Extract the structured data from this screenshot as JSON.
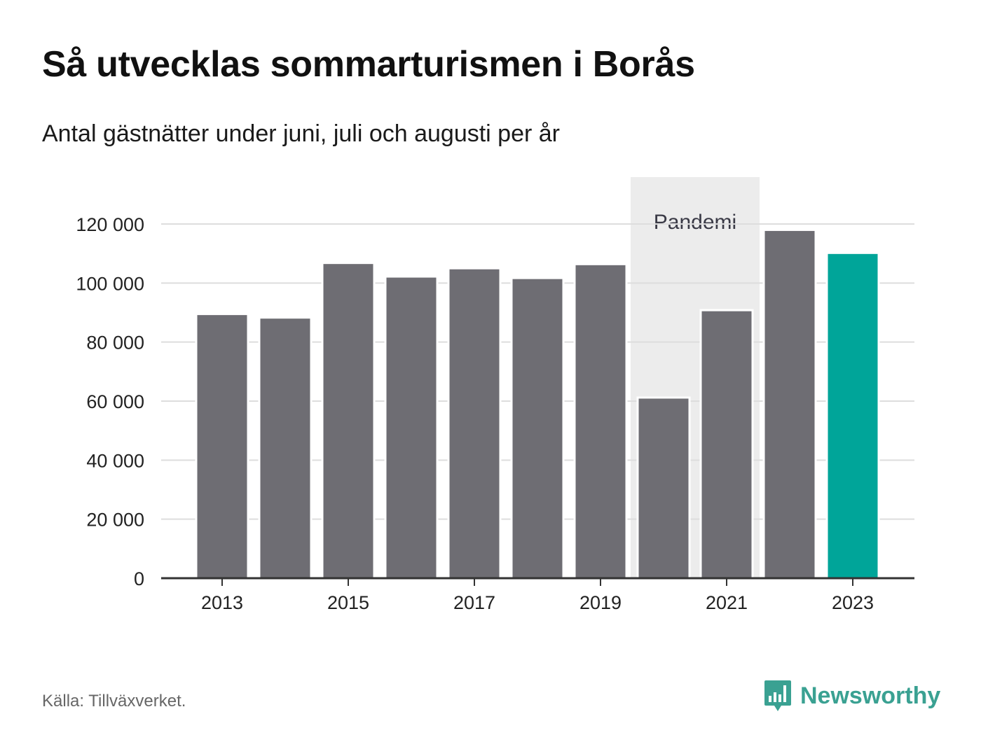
{
  "header": {
    "title": "Så utvecklas sommarturismen i Borås",
    "subtitle": "Antal gästnätter under juni, juli och augusti per år"
  },
  "footer": {
    "source": "Källa: Tillväxverket.",
    "brand": "Newsworthy",
    "brand_icon": "bar-chart-speech-bubble-icon"
  },
  "colors": {
    "bar": "#6e6d73",
    "highlight": "#00a599",
    "pandemic_band": "#ececec",
    "grid": "#dddddd",
    "axis": "#333333",
    "brand": "#3aa192"
  },
  "chart_data": {
    "type": "bar",
    "categories": [
      "2013",
      "2014",
      "2015",
      "2016",
      "2017",
      "2018",
      "2019",
      "2020",
      "2021",
      "2022",
      "2023"
    ],
    "values": [
      89500,
      88300,
      106800,
      102200,
      105000,
      101700,
      106400,
      61200,
      90800,
      118000,
      110200
    ],
    "highlight_category": "2023",
    "xlabel": "",
    "ylabel": "",
    "ylim": [
      0,
      120000
    ],
    "y_ticks": [
      0,
      20000,
      40000,
      60000,
      80000,
      100000,
      120000
    ],
    "y_tick_labels": [
      "0",
      "20 000",
      "40 000",
      "60 000",
      "80 000",
      "100 000",
      "120 000"
    ],
    "x_tick_labels": [
      "2013",
      "2015",
      "2017",
      "2019",
      "2021",
      "2023"
    ],
    "grid": true,
    "legend": "none",
    "annotation": {
      "label": "Pandemi",
      "from_category": "2020",
      "to_category": "2021"
    }
  }
}
